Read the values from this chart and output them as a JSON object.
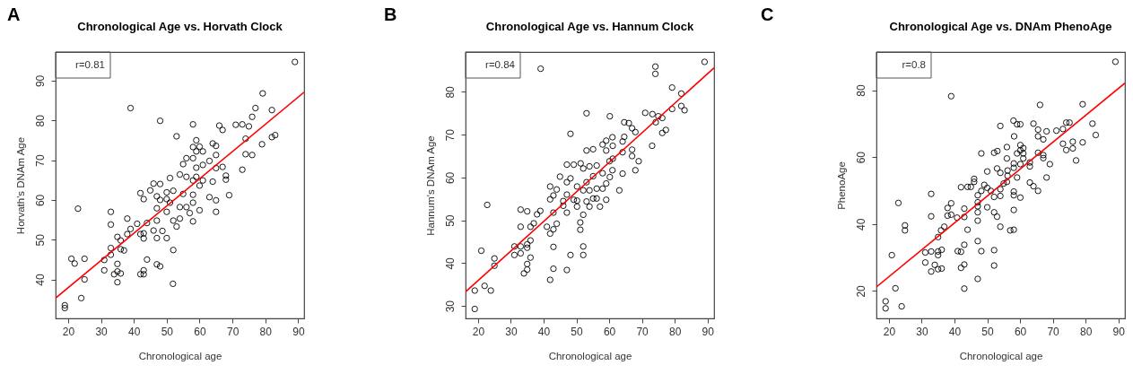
{
  "chart_data": [
    {
      "type": "scatter",
      "title": "Chronological Age vs. Horvath Clock",
      "xlabel": "Chronological age",
      "ylabel": "Horvath's DNAm Age",
      "annotations": [
        "A",
        "r=0.81"
      ],
      "xlim": [
        16.2,
        91.8
      ],
      "ylim": [
        30.2,
        97.2
      ],
      "xticks": [
        20,
        30,
        40,
        50,
        60,
        70,
        80,
        90
      ],
      "yticks": [
        40,
        50,
        60,
        70,
        80,
        90
      ],
      "grid": false,
      "series": [
        {
          "marker": "circle",
          "color": "#000000",
          "x": [
            89,
            79.2,
            82,
            77,
            76,
            39,
            48,
            58,
            66,
            67,
            71,
            73,
            75,
            53,
            74,
            82,
            83,
            79,
            59,
            64,
            65,
            58,
            60,
            61,
            59,
            74,
            76,
            65,
            73,
            58,
            56,
            55,
            63,
            61,
            67,
            65,
            59,
            68,
            68,
            69,
            63,
            65,
            65,
            64,
            60,
            61,
            59,
            58,
            56,
            54,
            51,
            48,
            46,
            45,
            42,
            43,
            47,
            50,
            48,
            50,
            52,
            55,
            58,
            58,
            58,
            60,
            57,
            56,
            54,
            54,
            53,
            52,
            51,
            50,
            47,
            47,
            48.7,
            46,
            47,
            50,
            52,
            47,
            48,
            51.9,
            44,
            44,
            41,
            39,
            38,
            42,
            43,
            43,
            42,
            43,
            43,
            38,
            37,
            36,
            36,
            35,
            33,
            33,
            33,
            33,
            31,
            31,
            35,
            35,
            34,
            36,
            35,
            23,
            21,
            22,
            25,
            25,
            24,
            19,
            19
          ],
          "values": [
            94.7,
            86.8,
            82.6,
            83.1,
            80.9,
            83.1,
            79.9,
            79,
            78.7,
            77.6,
            78.9,
            79,
            78.5,
            76,
            75.4,
            75.8,
            76.3,
            74,
            75,
            74.2,
            73.6,
            73.3,
            73.4,
            72.2,
            72.2,
            71.5,
            71.3,
            71.3,
            67.6,
            70.5,
            70.5,
            69,
            69.8,
            68.8,
            68.3,
            68,
            68.1,
            66.1,
            65.1,
            61.2,
            60.7,
            59.9,
            57,
            64.6,
            63.6,
            64.9,
            65.8,
            64.9,
            65.8,
            66.4,
            65.5,
            64,
            64.1,
            62.4,
            61.7,
            60.2,
            60.9,
            61.9,
            60,
            60.2,
            62.3,
            61.5,
            61.3,
            59.3,
            54.6,
            57.4,
            56.7,
            58.2,
            58.2,
            55.3,
            53.3,
            54.8,
            59.3,
            57,
            57.9,
            54.8,
            52.2,
            52.3,
            50.4,
            50.4,
            47.4,
            43.8,
            43.3,
            38.9,
            45,
            54.2,
            54,
            52.7,
            55.3,
            51.4,
            51.6,
            50.3,
            41.3,
            42.3,
            41.3,
            51.4,
            47.3,
            47.6,
            49.8,
            50.7,
            57,
            53.8,
            47.9,
            46.2,
            44.9,
            42.3,
            43.9,
            42,
            41.3,
            41.5,
            39.3,
            57.8,
            45.2,
            44,
            45.2,
            40,
            35.3,
            33.5,
            32.8
          ]
        },
        {
          "type": "line",
          "color": "#ff0000",
          "x": [
            16.2,
            91.8
          ],
          "values": [
            35.3,
            87.1
          ]
        }
      ]
    },
    {
      "type": "scatter",
      "title": "Chronological Age vs. Hannum Clock",
      "xlabel": "Chronological age",
      "ylabel": "Hannum's DNAm Age",
      "annotations": [
        "B",
        "r=0.84"
      ],
      "xlim": [
        16.2,
        92
      ],
      "ylim": [
        27.1,
        89.3
      ],
      "xticks": [
        20,
        30,
        40,
        50,
        60,
        70,
        80,
        90
      ],
      "yticks": [
        30,
        40,
        50,
        60,
        70,
        80
      ],
      "grid": false,
      "series": [
        {
          "marker": "circle",
          "color": "#000000",
          "x": [
            89.1,
            74.1,
            74.1,
            39.1,
            79.2,
            82,
            79.2,
            82,
            83,
            71,
            73.2,
            75,
            76.2,
            74.2,
            53.1,
            60.2,
            64.6,
            66,
            67,
            68,
            76.2,
            77.3,
            73.1,
            48.2,
            61,
            64.6,
            59.1,
            58,
            64.1,
            61.1,
            53.1,
            55.1,
            59.1,
            67,
            64.1,
            67,
            69,
            68,
            64.1,
            61.1,
            61,
            60.1,
            60.2,
            58,
            63.1,
            59.1,
            58,
            59.1,
            56.2,
            54,
            51.3,
            52.1,
            49.2,
            47.1,
            45,
            48.2,
            47.1,
            50.2,
            52.1,
            55.1,
            53.1,
            56.2,
            54,
            55.1,
            56.2,
            53.1,
            57.2,
            54,
            50.2,
            50.2,
            47.1,
            49.2,
            42,
            42,
            44,
            43,
            46,
            46,
            47.1,
            43,
            39,
            38,
            35,
            33,
            37,
            36,
            33,
            41,
            43,
            44,
            42,
            52.1,
            51.2,
            51.2,
            52.1,
            52.1,
            48.2,
            43,
            43,
            47.1,
            42,
            36,
            35,
            35,
            33,
            33,
            31.1,
            31.1,
            36,
            35,
            35,
            34,
            22.8,
            21,
            25,
            25,
            22,
            23.9,
            19,
            19
          ],
          "values": [
            87,
            85.9,
            84.2,
            85.4,
            81,
            79.6,
            76,
            76.7,
            75.7,
            75.1,
            74.8,
            74.3,
            73.9,
            72.9,
            75,
            74.3,
            72.9,
            72.7,
            71.5,
            70.6,
            70.4,
            71.1,
            67.4,
            70.2,
            69.4,
            69.5,
            68.6,
            67.7,
            68.4,
            67.4,
            66.3,
            66.6,
            66.3,
            66.5,
            65.9,
            65,
            63.8,
            61.7,
            60.9,
            64.4,
            61.7,
            63.8,
            60.1,
            61,
            57,
            58.6,
            57.4,
            54.8,
            62.8,
            62.6,
            63.3,
            62.1,
            63,
            63,
            60.2,
            59.8,
            58.9,
            57.9,
            57,
            60.3,
            58.9,
            57.4,
            57,
            55.1,
            55.1,
            54.4,
            53.2,
            53.2,
            54.6,
            53.2,
            56,
            54.8,
            57.9,
            54.9,
            57.2,
            55.8,
            54.5,
            53.4,
            51.8,
            51.8,
            52.2,
            51.4,
            52.1,
            52.5,
            49.3,
            48.5,
            48.5,
            48.5,
            47.9,
            49.2,
            46.9,
            51.3,
            49.5,
            47.8,
            43.9,
            41.9,
            41.9,
            43.8,
            38.7,
            38.4,
            36.1,
            45.3,
            44.4,
            43.6,
            43.9,
            42.3,
            43.9,
            41.9,
            41.3,
            39.8,
            38.5,
            37.6,
            53.6,
            42.9,
            41.1,
            39.4,
            34.7,
            33.6,
            33.6,
            29.3
          ]
        },
        {
          "type": "line",
          "color": "#ff0000",
          "x": [
            16.2,
            92
          ],
          "values": [
            33.3,
            85.6
          ]
        }
      ]
    },
    {
      "type": "scatter",
      "title": "Chronological Age vs. DNAm PhenoAge",
      "xlabel": "Chronological age",
      "ylabel": "PhenoAge",
      "annotations": [
        "C",
        "r=0.8"
      ],
      "xlim": [
        16.2,
        92
      ],
      "ylim": [
        11.8,
        91.4
      ],
      "xticks": [
        20,
        30,
        40,
        50,
        60,
        70,
        80,
        90
      ],
      "yticks": [
        20,
        40,
        60,
        80
      ],
      "grid": false,
      "series": [
        {
          "marker": "circle",
          "color": "#000000",
          "x": [
            89.1,
            39,
            66.1,
            79.1,
            58,
            59.1,
            60.1,
            64.1,
            54,
            74.1,
            75.1,
            82.1,
            71.1,
            73.1,
            65.5,
            68.1,
            65.5,
            58.2,
            67.1,
            83.1,
            73.1,
            76.1,
            79.1,
            74.1,
            76.1,
            77.1,
            69.1,
            67.1,
            67.1,
            65.5,
            60.1,
            61,
            60.1,
            61,
            59.1,
            61,
            60.1,
            63,
            63,
            56,
            53.1,
            52.1,
            48.2,
            56,
            58.1,
            56.2,
            56.2,
            56,
            58.1,
            59.1,
            54,
            53,
            50,
            68.1,
            63,
            64.1,
            65.5,
            58.1,
            58.1,
            60.1,
            55,
            54,
            54,
            52.1,
            51.1,
            49.1,
            48.2,
            50,
            46,
            46,
            45,
            44,
            42,
            47.1,
            47.1,
            47.1,
            47.1,
            47.1,
            50,
            52.1,
            53,
            54,
            58.1,
            57,
            58.1,
            39,
            37.9,
            37.9,
            39,
            43,
            43,
            40.8,
            44,
            36.9,
            35.9,
            32.9,
            32.9,
            35,
            35,
            35,
            36.1,
            32.9,
            31.1,
            31.1,
            34,
            32.9,
            35,
            36.1,
            41,
            42,
            43,
            42,
            43,
            47.1,
            48.2,
            52.1,
            52.1,
            47.1,
            43,
            22.9,
            24.9,
            24.9,
            20.9,
            22,
            23.9,
            19,
            19
          ],
          "values": [
            88.5,
            78.2,
            75.6,
            75.8,
            70.9,
            69.8,
            69.8,
            70,
            69.3,
            70.3,
            70.3,
            70,
            67.9,
            68.4,
            68.2,
            67.7,
            66.2,
            66.2,
            65.3,
            66.6,
            64,
            64.6,
            64.4,
            62.1,
            62.6,
            59,
            57.9,
            60.6,
            59.7,
            61.3,
            63.6,
            62.7,
            62,
            61.1,
            61.1,
            59.6,
            57.9,
            57.2,
            58.4,
            63,
            61.8,
            61.3,
            61.1,
            59.6,
            58.1,
            56,
            54.4,
            52.6,
            56.8,
            53.9,
            55.3,
            56.6,
            55.7,
            53.9,
            52.4,
            51.3,
            49.9,
            49.7,
            48.6,
            47.9,
            52.1,
            50.4,
            48.4,
            48.1,
            49.9,
            51.7,
            49.9,
            50.8,
            53.5,
            52.6,
            51.1,
            51.1,
            51,
            48.6,
            46.5,
            45.3,
            43.5,
            41,
            45,
            43.5,
            42.2,
            39.2,
            44.2,
            38.1,
            38.3,
            46.2,
            44.8,
            42.5,
            42.8,
            44.6,
            42.1,
            41.9,
            38.3,
            39.2,
            38.1,
            49,
            42.3,
            36.1,
            31.8,
            30.7,
            32.3,
            31.8,
            31.5,
            28.5,
            27.8,
            25.8,
            26.5,
            26.7,
            31.9,
            31.7,
            33.8,
            26.9,
            27.9,
            34.9,
            31.9,
            32.2,
            27.6,
            23.6,
            20.7,
            46.3,
            39.6,
            38.1,
            30.7,
            20.8,
            15.4,
            16.9,
            14.8
          ]
        },
        {
          "type": "line",
          "color": "#ff0000",
          "x": [
            16.2,
            92
          ],
          "values": [
            21.2,
            82.1
          ]
        }
      ]
    }
  ]
}
